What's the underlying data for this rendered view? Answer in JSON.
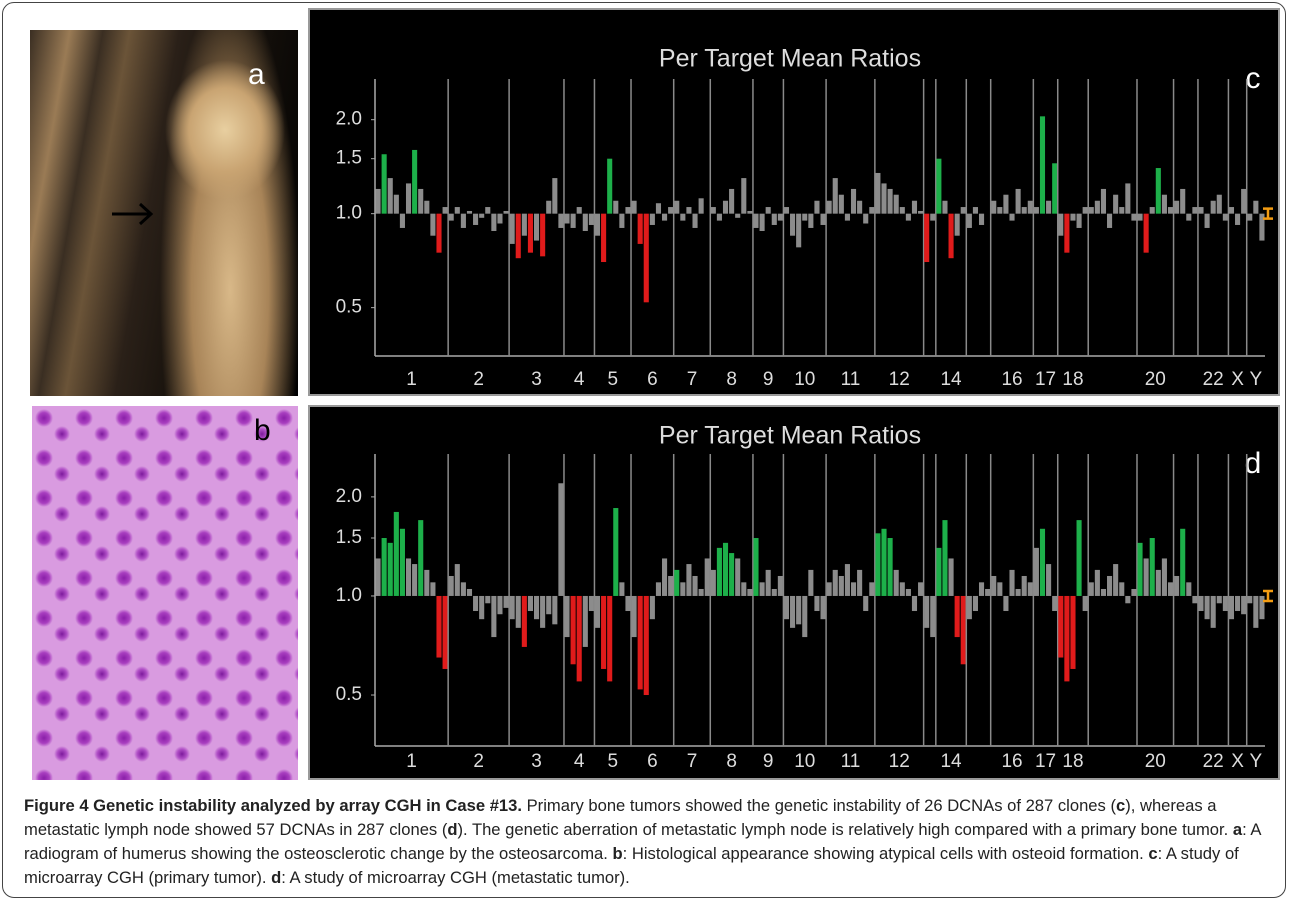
{
  "images": [
    {
      "label": "a"
    },
    {
      "label": "b"
    }
  ],
  "chart_data": [
    {
      "type": "bar",
      "panel_label": "c",
      "title": "Per Target Mean Ratios",
      "log_scale": true,
      "ylim": [
        0.35,
        2.7
      ],
      "yticks": [
        0.5,
        {
          "value": 1,
          "label": "1.0"
        },
        1.5,
        {
          "value": 2,
          "label": "2.0"
        }
      ],
      "groups": [
        {
          "label": "1",
          "values": [
            1.2,
            1.55,
            1.3,
            1.15,
            0.9,
            1.25,
            1.6,
            1.2,
            1.1,
            0.85,
            0.75,
            1.05
          ],
          "colors": [
            "#8c8c8c",
            "#1db04a",
            "#8c8c8c",
            "#8c8c8c",
            "#8c8c8c",
            "#8c8c8c",
            "#1db04a",
            "#8c8c8c",
            "#8c8c8c",
            "#8c8c8c",
            "#e01b1b",
            "#8c8c8c"
          ]
        },
        {
          "label": "2",
          "values": [
            0.95,
            1.05,
            0.9,
            1.02,
            0.92,
            0.97,
            1.05,
            0.88,
            0.93,
            1.02
          ],
          "colors": [
            "#8c8c8c",
            "#8c8c8c",
            "#8c8c8c",
            "#8c8c8c",
            "#8c8c8c",
            "#8c8c8c",
            "#8c8c8c",
            "#8c8c8c",
            "#8c8c8c",
            "#8c8c8c"
          ]
        },
        {
          "label": "3",
          "values": [
            0.8,
            0.72,
            0.85,
            0.75,
            0.82,
            0.73,
            1.1,
            1.3,
            0.9
          ],
          "colors": [
            "#8c8c8c",
            "#e01b1b",
            "#8c8c8c",
            "#e01b1b",
            "#8c8c8c",
            "#e01b1b",
            "#8c8c8c",
            "#8c8c8c",
            "#8c8c8c"
          ]
        },
        {
          "label": "4",
          "values": [
            0.93,
            0.9,
            1.05,
            0.88,
            0.92
          ],
          "colors": [
            "#8c8c8c",
            "#8c8c8c",
            "#8c8c8c",
            "#8c8c8c",
            "#8c8c8c"
          ]
        },
        {
          "label": "5",
          "values": [
            0.85,
            0.7,
            1.5,
            1.1,
            0.9,
            1.05
          ],
          "colors": [
            "#8c8c8c",
            "#e01b1b",
            "#1db04a",
            "#8c8c8c",
            "#8c8c8c",
            "#8c8c8c"
          ]
        },
        {
          "label": "6",
          "values": [
            1.1,
            0.8,
            0.52,
            0.92,
            1.08,
            0.95,
            1.05
          ],
          "colors": [
            "#8c8c8c",
            "#e01b1b",
            "#e01b1b",
            "#8c8c8c",
            "#8c8c8c",
            "#8c8c8c",
            "#8c8c8c"
          ]
        },
        {
          "label": "7",
          "values": [
            1.1,
            0.95,
            1.05,
            0.9,
            1.12,
            1.0
          ],
          "colors": [
            "#8c8c8c",
            "#8c8c8c",
            "#8c8c8c",
            "#8c8c8c",
            "#8c8c8c",
            "#8c8c8c"
          ]
        },
        {
          "label": "8",
          "values": [
            1.05,
            0.95,
            1.1,
            1.2,
            0.97,
            1.3,
            1.02
          ],
          "colors": [
            "#8c8c8c",
            "#8c8c8c",
            "#8c8c8c",
            "#8c8c8c",
            "#8c8c8c",
            "#8c8c8c",
            "#8c8c8c"
          ]
        },
        {
          "label": "9",
          "values": [
            0.9,
            0.88,
            1.05,
            0.92,
            0.95
          ],
          "colors": [
            "#8c8c8c",
            "#8c8c8c",
            "#8c8c8c",
            "#8c8c8c",
            "#8c8c8c"
          ]
        },
        {
          "label": "10",
          "values": [
            1.05,
            0.85,
            0.78,
            0.95,
            0.9,
            1.1,
            0.92
          ],
          "colors": [
            "#8c8c8c",
            "#8c8c8c",
            "#8c8c8c",
            "#8c8c8c",
            "#8c8c8c",
            "#8c8c8c",
            "#8c8c8c"
          ]
        },
        {
          "label": "11",
          "values": [
            1.1,
            1.3,
            1.15,
            0.95,
            1.2,
            1.1,
            0.93,
            1.05
          ],
          "colors": [
            "#8c8c8c",
            "#8c8c8c",
            "#8c8c8c",
            "#8c8c8c",
            "#8c8c8c",
            "#8c8c8c",
            "#8c8c8c",
            "#8c8c8c"
          ]
        },
        {
          "label": "12",
          "values": [
            1.35,
            1.25,
            1.2,
            1.15,
            1.05,
            0.95,
            1.1,
            1.02
          ],
          "colors": [
            "#8c8c8c",
            "#8c8c8c",
            "#8c8c8c",
            "#8c8c8c",
            "#8c8c8c",
            "#8c8c8c",
            "#8c8c8c",
            "#8c8c8c"
          ]
        },
        {
          "label": null,
          "values": [
            0.7,
            0.95
          ],
          "colors": [
            "#e01b1b",
            "#8c8c8c"
          ]
        },
        {
          "label": "14",
          "values": [
            1.5,
            1.1,
            0.72,
            0.85,
            1.05
          ],
          "colors": [
            "#1db04a",
            "#8c8c8c",
            "#e01b1b",
            "#8c8c8c",
            "#8c8c8c"
          ]
        },
        {
          "label": null,
          "values": [
            0.9,
            1.05,
            0.92,
            1.0
          ],
          "colors": [
            "#8c8c8c",
            "#8c8c8c",
            "#8c8c8c",
            "#8c8c8c"
          ]
        },
        {
          "label": "16",
          "values": [
            1.1,
            1.05,
            1.15,
            0.95,
            1.2,
            1.05,
            1.1
          ],
          "colors": [
            "#8c8c8c",
            "#8c8c8c",
            "#8c8c8c",
            "#8c8c8c",
            "#8c8c8c",
            "#8c8c8c",
            "#8c8c8c"
          ]
        },
        {
          "label": "17",
          "values": [
            1.05,
            2.05,
            1.1,
            1.45
          ],
          "colors": [
            "#8c8c8c",
            "#1db04a",
            "#8c8c8c",
            "#1db04a"
          ]
        },
        {
          "label": "18",
          "values": [
            0.85,
            0.75,
            0.95,
            0.9,
            1.05
          ],
          "colors": [
            "#8c8c8c",
            "#e01b1b",
            "#8c8c8c",
            "#8c8c8c",
            "#8c8c8c"
          ]
        },
        {
          "label": null,
          "values": [
            1.05,
            1.1,
            1.2,
            0.9,
            1.15,
            1.05,
            1.25,
            0.95
          ],
          "colors": [
            "#8c8c8c",
            "#8c8c8c",
            "#8c8c8c",
            "#8c8c8c",
            "#8c8c8c",
            "#8c8c8c",
            "#8c8c8c",
            "#8c8c8c"
          ]
        },
        {
          "label": "20",
          "values": [
            0.95,
            0.75,
            1.05,
            1.4,
            1.15,
            1.05
          ],
          "colors": [
            "#8c8c8c",
            "#e01b1b",
            "#8c8c8c",
            "#1db04a",
            "#8c8c8c",
            "#8c8c8c"
          ]
        },
        {
          "label": null,
          "values": [
            1.1,
            1.2,
            0.95,
            1.05
          ],
          "colors": [
            "#8c8c8c",
            "#8c8c8c",
            "#8c8c8c",
            "#8c8c8c"
          ]
        },
        {
          "label": "22",
          "values": [
            1.05,
            0.9,
            1.1,
            1.15,
            0.95
          ],
          "colors": [
            "#8c8c8c",
            "#8c8c8c",
            "#8c8c8c",
            "#8c8c8c",
            "#8c8c8c"
          ]
        },
        {
          "label": "X",
          "values": [
            1.05,
            0.92,
            1.2
          ],
          "colors": [
            "#8c8c8c",
            "#8c8c8c",
            "#8c8c8c"
          ]
        },
        {
          "label": "Y",
          "values": [
            0.95,
            1.1,
            0.82
          ],
          "colors": [
            "#8c8c8c",
            "#8c8c8c",
            "#8c8c8c"
          ]
        }
      ]
    },
    {
      "type": "bar",
      "panel_label": "d",
      "title": "Per Target Mean Ratios",
      "log_scale": true,
      "ylim": [
        0.35,
        2.7
      ],
      "yticks": [
        0.5,
        {
          "value": 1,
          "label": "1.0"
        },
        1.5,
        {
          "value": 2,
          "label": "2.0"
        }
      ],
      "groups": [
        {
          "label": "1",
          "values": [
            1.3,
            1.5,
            1.45,
            1.8,
            1.6,
            1.3,
            1.25,
            1.7,
            1.2,
            1.1,
            0.65,
            0.6
          ],
          "colors": [
            "#8c8c8c",
            "#1db04a",
            "#1db04a",
            "#1db04a",
            "#1db04a",
            "#8c8c8c",
            "#8c8c8c",
            "#1db04a",
            "#8c8c8c",
            "#8c8c8c",
            "#e01b1b",
            "#e01b1b"
          ]
        },
        {
          "label": "2",
          "values": [
            1.15,
            1.25,
            1.1,
            1.05,
            0.9,
            0.85,
            0.95,
            0.75,
            0.88,
            0.92
          ],
          "colors": [
            "#8c8c8c",
            "#8c8c8c",
            "#8c8c8c",
            "#8c8c8c",
            "#8c8c8c",
            "#8c8c8c",
            "#8c8c8c",
            "#8c8c8c",
            "#8c8c8c",
            "#8c8c8c"
          ]
        },
        {
          "label": "3",
          "values": [
            0.85,
            0.8,
            0.7,
            0.9,
            0.85,
            0.8,
            0.88,
            0.82,
            2.2
          ],
          "colors": [
            "#8c8c8c",
            "#8c8c8c",
            "#e01b1b",
            "#8c8c8c",
            "#8c8c8c",
            "#8c8c8c",
            "#8c8c8c",
            "#8c8c8c",
            "#8c8c8c"
          ]
        },
        {
          "label": "4",
          "values": [
            0.75,
            0.62,
            0.55,
            0.7,
            0.9
          ],
          "colors": [
            "#8c8c8c",
            "#e01b1b",
            "#e01b1b",
            "#8c8c8c",
            "#8c8c8c"
          ]
        },
        {
          "label": "5",
          "values": [
            0.8,
            0.6,
            0.55,
            1.85,
            1.1,
            0.9
          ],
          "colors": [
            "#8c8c8c",
            "#e01b1b",
            "#e01b1b",
            "#1db04a",
            "#8c8c8c",
            "#8c8c8c"
          ]
        },
        {
          "label": "6",
          "values": [
            0.75,
            0.52,
            0.5,
            0.85,
            1.1,
            1.3,
            1.15
          ],
          "colors": [
            "#8c8c8c",
            "#e01b1b",
            "#e01b1b",
            "#8c8c8c",
            "#8c8c8c",
            "#8c8c8c",
            "#8c8c8c"
          ]
        },
        {
          "label": "7",
          "values": [
            1.2,
            1.1,
            1.25,
            1.15,
            1.05,
            1.3
          ],
          "colors": [
            "#1db04a",
            "#8c8c8c",
            "#8c8c8c",
            "#8c8c8c",
            "#8c8c8c",
            "#8c8c8c"
          ]
        },
        {
          "label": "8",
          "values": [
            1.2,
            1.4,
            1.45,
            1.35,
            1.3,
            1.1,
            1.05
          ],
          "colors": [
            "#8c8c8c",
            "#1db04a",
            "#1db04a",
            "#1db04a",
            "#8c8c8c",
            "#8c8c8c",
            "#8c8c8c"
          ]
        },
        {
          "label": "9",
          "values": [
            1.5,
            1.1,
            1.2,
            1.05,
            1.15
          ],
          "colors": [
            "#1db04a",
            "#8c8c8c",
            "#8c8c8c",
            "#8c8c8c",
            "#8c8c8c"
          ]
        },
        {
          "label": "10",
          "values": [
            0.85,
            0.8,
            0.82,
            0.75,
            1.2,
            0.9,
            0.85
          ],
          "colors": [
            "#8c8c8c",
            "#8c8c8c",
            "#8c8c8c",
            "#8c8c8c",
            "#8c8c8c",
            "#8c8c8c",
            "#8c8c8c"
          ]
        },
        {
          "label": "11",
          "values": [
            1.1,
            1.2,
            1.15,
            1.25,
            1.1,
            1.2,
            0.9,
            1.1
          ],
          "colors": [
            "#8c8c8c",
            "#8c8c8c",
            "#8c8c8c",
            "#8c8c8c",
            "#8c8c8c",
            "#8c8c8c",
            "#8c8c8c",
            "#8c8c8c"
          ]
        },
        {
          "label": "12",
          "values": [
            1.55,
            1.6,
            1.5,
            1.2,
            1.1,
            1.05,
            0.9,
            1.1
          ],
          "colors": [
            "#1db04a",
            "#1db04a",
            "#1db04a",
            "#8c8c8c",
            "#8c8c8c",
            "#8c8c8c",
            "#8c8c8c",
            "#8c8c8c"
          ]
        },
        {
          "label": null,
          "values": [
            0.8,
            0.75
          ],
          "colors": [
            "#8c8c8c",
            "#8c8c8c"
          ]
        },
        {
          "label": "14",
          "values": [
            1.4,
            1.7,
            1.3,
            0.75,
            0.62
          ],
          "colors": [
            "#1db04a",
            "#1db04a",
            "#8c8c8c",
            "#e01b1b",
            "#e01b1b"
          ]
        },
        {
          "label": null,
          "values": [
            0.85,
            0.9,
            1.1,
            1.05
          ],
          "colors": [
            "#8c8c8c",
            "#8c8c8c",
            "#8c8c8c",
            "#8c8c8c"
          ]
        },
        {
          "label": "16",
          "values": [
            1.15,
            1.1,
            0.9,
            1.2,
            1.05,
            1.15,
            1.1
          ],
          "colors": [
            "#8c8c8c",
            "#8c8c8c",
            "#8c8c8c",
            "#8c8c8c",
            "#8c8c8c",
            "#8c8c8c",
            "#8c8c8c"
          ]
        },
        {
          "label": "17",
          "values": [
            1.4,
            1.6,
            1.25,
            0.9
          ],
          "colors": [
            "#8c8c8c",
            "#1db04a",
            "#8c8c8c",
            "#8c8c8c"
          ]
        },
        {
          "label": "18",
          "values": [
            0.65,
            0.55,
            0.6,
            1.7,
            0.9
          ],
          "colors": [
            "#e01b1b",
            "#e01b1b",
            "#e01b1b",
            "#1db04a",
            "#8c8c8c"
          ]
        },
        {
          "label": null,
          "values": [
            1.1,
            1.2,
            1.05,
            1.15,
            1.25,
            1.1,
            0.95,
            1.05
          ],
          "colors": [
            "#8c8c8c",
            "#8c8c8c",
            "#8c8c8c",
            "#8c8c8c",
            "#8c8c8c",
            "#8c8c8c",
            "#8c8c8c",
            "#8c8c8c"
          ]
        },
        {
          "label": "20",
          "values": [
            1.45,
            1.3,
            1.5,
            1.2,
            1.3,
            1.1
          ],
          "colors": [
            "#1db04a",
            "#8c8c8c",
            "#1db04a",
            "#8c8c8c",
            "#8c8c8c",
            "#8c8c8c"
          ]
        },
        {
          "label": null,
          "values": [
            1.15,
            1.6,
            1.1,
            0.95
          ],
          "colors": [
            "#8c8c8c",
            "#1db04a",
            "#8c8c8c",
            "#8c8c8c"
          ]
        },
        {
          "label": "22",
          "values": [
            0.9,
            0.85,
            0.8,
            0.95,
            0.9
          ],
          "colors": [
            "#8c8c8c",
            "#8c8c8c",
            "#8c8c8c",
            "#8c8c8c",
            "#8c8c8c"
          ]
        },
        {
          "label": "X",
          "values": [
            0.85,
            0.9,
            0.88
          ],
          "colors": [
            "#8c8c8c",
            "#8c8c8c",
            "#8c8c8c"
          ]
        },
        {
          "label": "Y",
          "values": [
            0.95,
            0.8,
            0.85
          ],
          "colors": [
            "#8c8c8c",
            "#8c8c8c",
            "#8c8c8c"
          ]
        }
      ]
    }
  ],
  "caption": {
    "title": "Figure 4 Genetic instability analyzed by array CGH in Case #13.",
    "runs": [
      {
        "text": " Primary bone tumors showed the genetic instability of 26 DCNAs of 287 clones ("
      },
      {
        "bold": "c"
      },
      {
        "text": "), whereas a metastatic lymph node showed 57 DCNAs in 287 clones ("
      },
      {
        "bold": "d"
      },
      {
        "text": "). The genetic aberration of metastatic lymph node is relatively high compared with a primary bone tumor. "
      },
      {
        "bold": "a"
      },
      {
        "text": ": A radiogram of humerus showing the osteosclerotic change by the osteosarcoma. "
      },
      {
        "bold": "b"
      },
      {
        "text": ": Histological appearance showing atypical cells with osteoid formation. "
      },
      {
        "bold": "c"
      },
      {
        "text": ": A study of microarray CGH (primary tumor). "
      },
      {
        "bold": "d"
      },
      {
        "text": ": A study of microarray CGH (metastatic tumor)."
      }
    ]
  }
}
